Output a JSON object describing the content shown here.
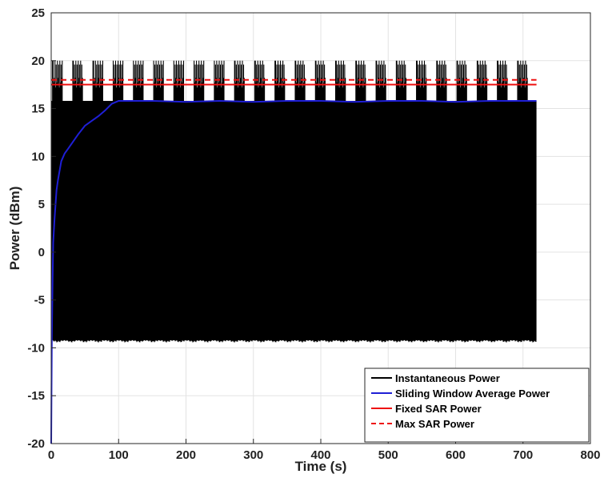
{
  "chart_data": {
    "type": "line",
    "title": "",
    "xlabel": "Time (s)",
    "ylabel": "Power (dBm)",
    "xlim": [
      0,
      800
    ],
    "ylim": [
      -20,
      25
    ],
    "xticks": [
      0,
      100,
      200,
      300,
      400,
      500,
      600,
      700,
      800
    ],
    "yticks": [
      -20,
      -15,
      -10,
      -5,
      0,
      5,
      10,
      15,
      20,
      25
    ],
    "grid": true,
    "legend_position": "bottom-right",
    "colors": {
      "instantaneous": "#000000",
      "sliding_average": "#1f1fd6",
      "fixed_sar": "#ee1111",
      "max_sar": "#ee1111"
    },
    "series": [
      {
        "name": "Instantaneous Power",
        "style": "solid",
        "x_range": [
          0,
          720
        ],
        "band_min": -9.2,
        "band_max": 15.8,
        "burst_period": 30,
        "burst_peak": 20
      },
      {
        "name": "Sliding Window Average Power",
        "style": "solid",
        "x": [
          0,
          1,
          2,
          3,
          5,
          8,
          10,
          15,
          20,
          25,
          30,
          40,
          50,
          60,
          70,
          80,
          90,
          100,
          120,
          150,
          200,
          250,
          300,
          350,
          400,
          450,
          500,
          550,
          600,
          650,
          700,
          720
        ],
        "y": [
          -20,
          -9,
          -3,
          1,
          3.5,
          6.5,
          7.5,
          9.5,
          10.3,
          10.8,
          11.3,
          12.3,
          13.2,
          13.7,
          14.2,
          14.8,
          15.5,
          15.8,
          15.8,
          15.8,
          15.7,
          15.8,
          15.7,
          15.8,
          15.8,
          15.7,
          15.8,
          15.8,
          15.7,
          15.8,
          15.8,
          15.8
        ]
      },
      {
        "name": "Fixed SAR Power",
        "style": "solid",
        "x": [
          0,
          720
        ],
        "y": [
          17.5,
          17.5
        ]
      },
      {
        "name": "Max SAR Power",
        "style": "dashed",
        "x": [
          0,
          720
        ],
        "y": [
          18,
          18
        ]
      }
    ]
  }
}
